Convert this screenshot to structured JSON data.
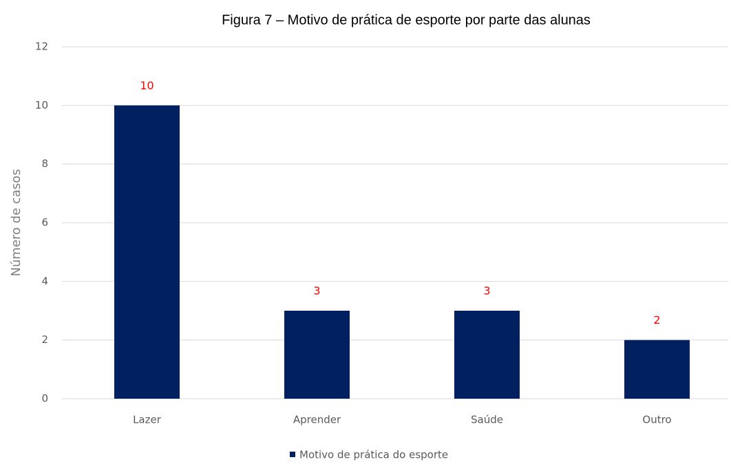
{
  "chart_data": {
    "type": "bar",
    "title": "Figura 7 – Motivo de prática de esporte por parte das alunas",
    "y_label": "Número de casos",
    "categories": [
      "Lazer",
      "Aprender",
      "Saúde",
      "Outro"
    ],
    "series": [
      {
        "name": "Motivo de prática do esporte",
        "color": "#002060",
        "values": [
          10,
          3,
          3,
          2
        ]
      }
    ],
    "data_label_color": "#ff0000",
    "ylim": [
      0,
      12
    ],
    "yticks": [
      0,
      2,
      4,
      6,
      8,
      10,
      12
    ],
    "grid": true,
    "legend": "bottom"
  }
}
